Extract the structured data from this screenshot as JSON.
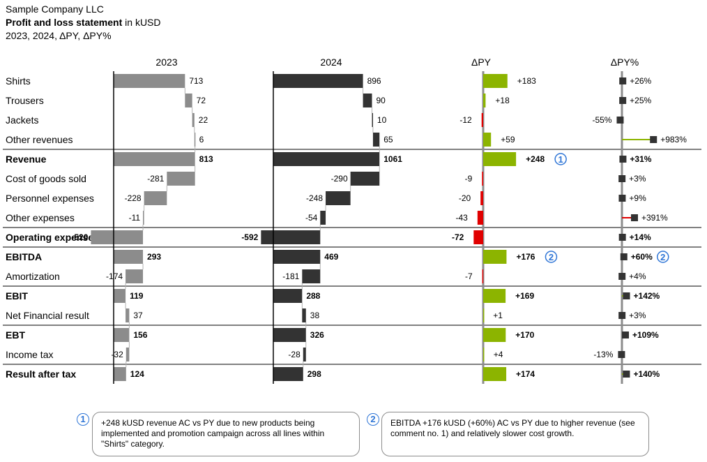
{
  "header": {
    "company": "Sample Company LLC",
    "title_bold": "Profit and loss statement",
    "title_unit": " in kUSD",
    "subtitle": "2023, 2024, ΔPY, ΔPY%"
  },
  "colors": {
    "py_bar": "#8c8c8c",
    "ac_bar": "#333333",
    "positive": "#8cb400",
    "negative": "#e00000",
    "axis": "#8c8c8c",
    "badge": "#2e75d6"
  },
  "chart_data": {
    "type": "bar",
    "subtype": "waterfall-table",
    "column_headers": {
      "py": "2023",
      "ac": "2024",
      "delta": "ΔPY",
      "delta_pct": "ΔPY%"
    },
    "rows": [
      {
        "label": "Shirts",
        "kind": "item",
        "py": 713,
        "ac": 896,
        "delta": 183,
        "pct": 26,
        "py_label": "713",
        "ac_label": "896",
        "delta_label": "+183",
        "pct_label": "+26%"
      },
      {
        "label": "Trousers",
        "kind": "item",
        "py": 72,
        "ac": 90,
        "delta": 18,
        "pct": 25,
        "py_label": "72",
        "ac_label": "90",
        "delta_label": "+18",
        "pct_label": "+25%"
      },
      {
        "label": "Jackets",
        "kind": "item",
        "py": 22,
        "ac": 10,
        "delta": -12,
        "pct": -55,
        "py_label": "22",
        "ac_label": "10",
        "delta_label": "-12",
        "pct_label": "-55%"
      },
      {
        "label": "Other revenues",
        "kind": "item",
        "py": 6,
        "ac": 65,
        "delta": 59,
        "pct": 983,
        "py_label": "6",
        "ac_label": "65",
        "delta_label": "+59",
        "pct_label": "+983%"
      },
      {
        "label": "Revenue",
        "kind": "total",
        "py": 813,
        "ac": 1061,
        "delta": 248,
        "pct": 31,
        "py_label": "813",
        "ac_label": "1061",
        "delta_label": "+248",
        "pct_label": "+31%",
        "delta_note": "1"
      },
      {
        "label": "Cost of goods sold",
        "kind": "item",
        "py": -281,
        "ac": -290,
        "delta": -9,
        "pct": 3,
        "py_label": "-281",
        "ac_label": "-290",
        "delta_label": "-9",
        "pct_label": "+3%"
      },
      {
        "label": "Personnel expenses",
        "kind": "item",
        "py": -228,
        "ac": -248,
        "delta": -20,
        "pct": 9,
        "py_label": "-228",
        "ac_label": "-248",
        "delta_label": "-20",
        "pct_label": "+9%"
      },
      {
        "label": "Other expenses",
        "kind": "item",
        "py": -11,
        "ac": -54,
        "delta": -43,
        "pct": 391,
        "py_label": "-11",
        "ac_label": "-54",
        "delta_label": "-43",
        "pct_label": "+391%"
      },
      {
        "label": "Operating expenses",
        "kind": "total",
        "py": -520,
        "ac": -592,
        "delta": -72,
        "pct": 14,
        "py_label": "-520",
        "ac_label": "-592",
        "delta_label": "-72",
        "pct_label": "+14%"
      },
      {
        "label": "EBITDA",
        "kind": "total",
        "py": 293,
        "ac": 469,
        "delta": 176,
        "pct": 60,
        "py_label": "293",
        "ac_label": "469",
        "delta_label": "+176",
        "pct_label": "+60%",
        "delta_note": "2",
        "pct_note": "2"
      },
      {
        "label": "Amortization",
        "kind": "item",
        "py": -174,
        "ac": -181,
        "delta": -7,
        "pct": 4,
        "py_label": "-174",
        "ac_label": "-181",
        "delta_label": "-7",
        "pct_label": "+4%"
      },
      {
        "label": "EBIT",
        "kind": "total",
        "py": 119,
        "ac": 288,
        "delta": 169,
        "pct": 142,
        "py_label": "119",
        "ac_label": "288",
        "delta_label": "+169",
        "pct_label": "+142%"
      },
      {
        "label": "Net Financial result",
        "kind": "item",
        "py": 37,
        "ac": 38,
        "delta": 1,
        "pct": 3,
        "py_label": "37",
        "ac_label": "38",
        "delta_label": "+1",
        "pct_label": "+3%"
      },
      {
        "label": "EBT",
        "kind": "total",
        "py": 156,
        "ac": 326,
        "delta": 170,
        "pct": 109,
        "py_label": "156",
        "ac_label": "326",
        "delta_label": "+170",
        "pct_label": "+109%"
      },
      {
        "label": "Income tax",
        "kind": "item",
        "py": -32,
        "ac": -28,
        "delta": 4,
        "pct": -13,
        "py_label": "-32",
        "ac_label": "-28",
        "delta_label": "+4",
        "pct_label": "-13%"
      },
      {
        "label": "Result after tax",
        "kind": "total",
        "py": 124,
        "ac": 298,
        "delta": 174,
        "pct": 140,
        "py_label": "124",
        "ac_label": "298",
        "delta_label": "+174",
        "pct_label": "+140%"
      }
    ]
  },
  "notes": [
    {
      "number": "1",
      "text": "+248 kUSD revenue AC vs PY due to new products being implemented and promotion campaign across all lines within \"Shirts\" category."
    },
    {
      "number": "2",
      "text": "EBITDA +176 kUSD (+60%) AC vs PY due to higher revenue (see comment no. 1) and relatively slower cost growth."
    }
  ]
}
